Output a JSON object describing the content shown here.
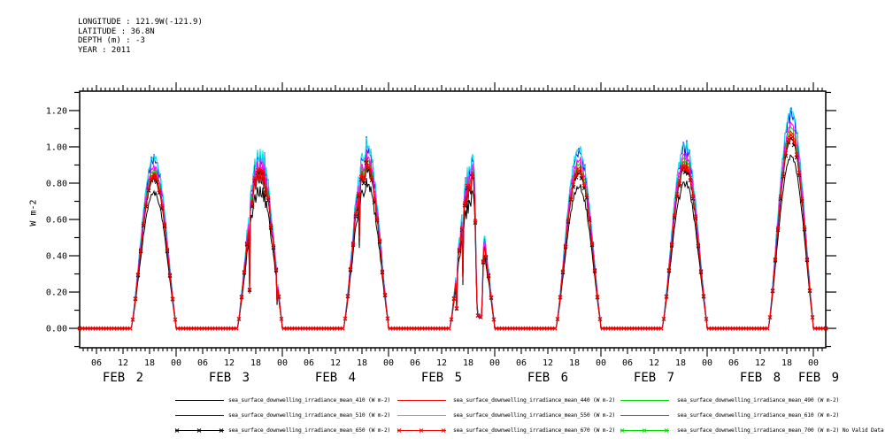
{
  "meta": {
    "longitude_line": "LONGITUDE : 121.9W(-121.9)",
    "latitude_line": "LATITUDE : 36.8N",
    "depth_line": "DEPTH (m) : -3",
    "year_line": "YEAR : 2011"
  },
  "chart_data": {
    "type": "line",
    "title": "",
    "xlabel": "",
    "ylabel": "W m-2",
    "ylim": [
      -0.107,
      1.307
    ],
    "grid": false,
    "legend_position": "bottom",
    "y_major_ticks": [
      "0.00",
      "0.20",
      "0.40",
      "0.60",
      "0.80",
      "1.00",
      "1.20"
    ],
    "y_major_values": [
      0.0,
      0.2,
      0.4,
      0.6,
      0.8,
      1.0,
      1.2
    ],
    "y_minor_step": 0.1,
    "x_hours_range": [
      2.2,
      170.8
    ],
    "x_hour_label_step": 6,
    "x_hour_label_cycle": [
      "06",
      "12",
      "18",
      "00"
    ],
    "x_day_labels": [
      "FEB 2",
      "FEB 3",
      "FEB 4",
      "FEB 5",
      "FEB 6",
      "FEB 7",
      "FEB 8",
      "FEB 9"
    ],
    "series": [
      {
        "id": "410",
        "label": "sea_surface_downwelling_irradiance_mean_410 (W m-2)",
        "color": "#000000",
        "markers": false,
        "scale": 0.79,
        "no_data": false,
        "legend_row": 0,
        "legend_col": 0
      },
      {
        "id": "440",
        "label": "sea_surface_downwelling_irradiance_mean_440 (W m-2)",
        "color": "#ff0000",
        "markers": false,
        "scale": 0.9,
        "no_data": false,
        "legend_row": 0,
        "legend_col": 1
      },
      {
        "id": "490",
        "label": "sea_surface_downwelling_irradiance_mean_490 (W m-2)",
        "color": "#00dd00",
        "markers": false,
        "scale": 0.92,
        "no_data": false,
        "legend_row": 0,
        "legend_col": 2
      },
      {
        "id": "510",
        "label": "sea_surface_downwelling_irradiance_mean_510 (W m-2)",
        "color": "#0011ee",
        "markers": false,
        "scale": 0.985,
        "no_data": false,
        "legend_row": 1,
        "legend_col": 0
      },
      {
        "id": "550",
        "label": "sea_surface_downwelling_irradiance_mean_550 (W m-2)",
        "color": "#00e5e5",
        "markers": false,
        "scale": 1.0,
        "no_data": false,
        "legend_row": 1,
        "legend_col": 1
      },
      {
        "id": "610",
        "label": "sea_surface_downwelling_irradiance_mean_610 (W m-2)",
        "color": "#ff00ff",
        "markers": false,
        "scale": 0.94,
        "no_data": false,
        "legend_row": 1,
        "legend_col": 2
      },
      {
        "id": "650",
        "label": "sea_surface_downwelling_irradiance_mean_650 (W m-2)",
        "color": "#000000",
        "markers": true,
        "scale": 0.87,
        "no_data": false,
        "legend_row": 2,
        "legend_col": 0
      },
      {
        "id": "670",
        "label": "sea_surface_downwelling_irradiance_mean_670 (W m-2)",
        "color": "#ff0000",
        "markers": true,
        "scale": 0.885,
        "no_data": false,
        "legend_row": 2,
        "legend_col": 1
      },
      {
        "id": "700",
        "label": "sea_surface_downwelling_irradiance_mean_700 (W m-2) No Valid Data",
        "color": "#00dd00",
        "markers": true,
        "scale": null,
        "no_data": true,
        "legend_row": 2,
        "legend_col": 2
      }
    ],
    "days": [
      {
        "date": "FEB 2",
        "sunrise_utc": 13.8,
        "sunset_utc": 24.2,
        "peak_w_m2": 0.97,
        "noise": 0.05
      },
      {
        "date": "FEB 3",
        "sunrise_utc": 13.8,
        "sunset_utc": 24.2,
        "peak_w_m2": 1.05,
        "noise": 0.13
      },
      {
        "date": "FEB 4",
        "sunrise_utc": 13.8,
        "sunset_utc": 24.2,
        "peak_w_m2": 1.09,
        "noise": 0.15
      },
      {
        "date": "FEB 5",
        "sunrise_utc": 13.8,
        "sunset_utc": 24.2,
        "peak_w_m2": 1.01,
        "noise": 0.16,
        "afternoon_dip": {
          "drop_start": 0.54,
          "low_start": 0.6,
          "low_end": 0.7,
          "recover": 0.745,
          "recover_end": 0.8,
          "normal": 0.86,
          "min_factor": 0.1,
          "recovery_factor": 0.92
        }
      },
      {
        "date": "FEB 6",
        "sunrise_utc": 13.8,
        "sunset_utc": 24.2,
        "peak_w_m2": 1.03,
        "noise": 0.06
      },
      {
        "date": "FEB 7",
        "sunrise_utc": 13.8,
        "sunset_utc": 24.2,
        "peak_w_m2": 1.05,
        "noise": 0.07
      },
      {
        "date": "FEB 8",
        "sunrise_utc": 13.8,
        "sunset_utc": 24.2,
        "peak_w_m2": 1.22,
        "noise": 0.03
      }
    ]
  }
}
